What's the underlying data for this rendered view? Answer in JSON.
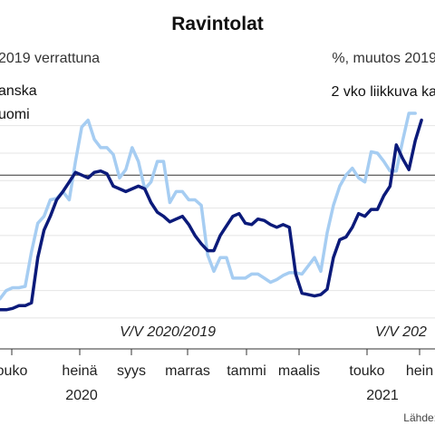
{
  "chart_data": {
    "type": "line",
    "title": "Ravintolat",
    "left_subtitle": "2019 verrattuna",
    "right_subtitle": "%, muutos 2019",
    "note": "2 vko liikkuva ka",
    "period_labels": [
      "V/V 2020/2019",
      "V/V 202"
    ],
    "x_ticks": [
      "ouko",
      "heinä",
      "syys",
      "marras",
      "tammi",
      "maalis",
      "touko",
      "hein"
    ],
    "year_labels": [
      "2020",
      "2021"
    ],
    "source": "Lähde:",
    "colors": {
      "Ranska": "#0b1a7a",
      "Suomi": "#a6cdf2",
      "zero_line": "#333333"
    },
    "y_reference": 0,
    "ylim": [
      -110,
      45
    ],
    "xlim": [
      0,
      69
    ],
    "series": [
      {
        "name": "anska",
        "values": [
          -98,
          -98,
          -97,
          -95,
          -95,
          -93,
          -60,
          -40,
          -30,
          -18,
          -12,
          -5,
          2,
          0,
          -2,
          2,
          3,
          1,
          -8,
          -10,
          -12,
          -10,
          -8,
          -10,
          -20,
          -27,
          -30,
          -34,
          -32,
          -30,
          -36,
          -44,
          -50,
          -55,
          -55,
          -44,
          -37,
          -30,
          -28,
          -35,
          -36,
          -32,
          -33,
          -36,
          -38,
          -36,
          -38,
          -72,
          -86,
          -87,
          -88,
          -87,
          -83,
          -60,
          -47,
          -45,
          -38,
          -28,
          -30,
          -25,
          -25,
          -15,
          -8,
          22,
          12,
          4,
          25,
          40
        ]
      },
      {
        "name": "uomi",
        "values": [
          -90,
          -84,
          -82,
          -82,
          -81,
          -56,
          -35,
          -30,
          -18,
          -17,
          -12,
          -18,
          10,
          35,
          40,
          26,
          20,
          20,
          15,
          -2,
          4,
          20,
          10,
          -10,
          -5,
          10,
          10,
          -20,
          -12,
          -12,
          -18,
          -18,
          -22,
          -58,
          -70,
          -60,
          -60,
          -75,
          -75,
          -75,
          -72,
          -72,
          -75,
          -78,
          -76,
          -73,
          -71,
          -71,
          -72,
          -66,
          -60,
          -70,
          -42,
          -22,
          -8,
          0,
          5,
          -2,
          -5,
          17,
          16,
          10,
          3,
          3,
          25,
          45,
          45
        ]
      }
    ]
  }
}
